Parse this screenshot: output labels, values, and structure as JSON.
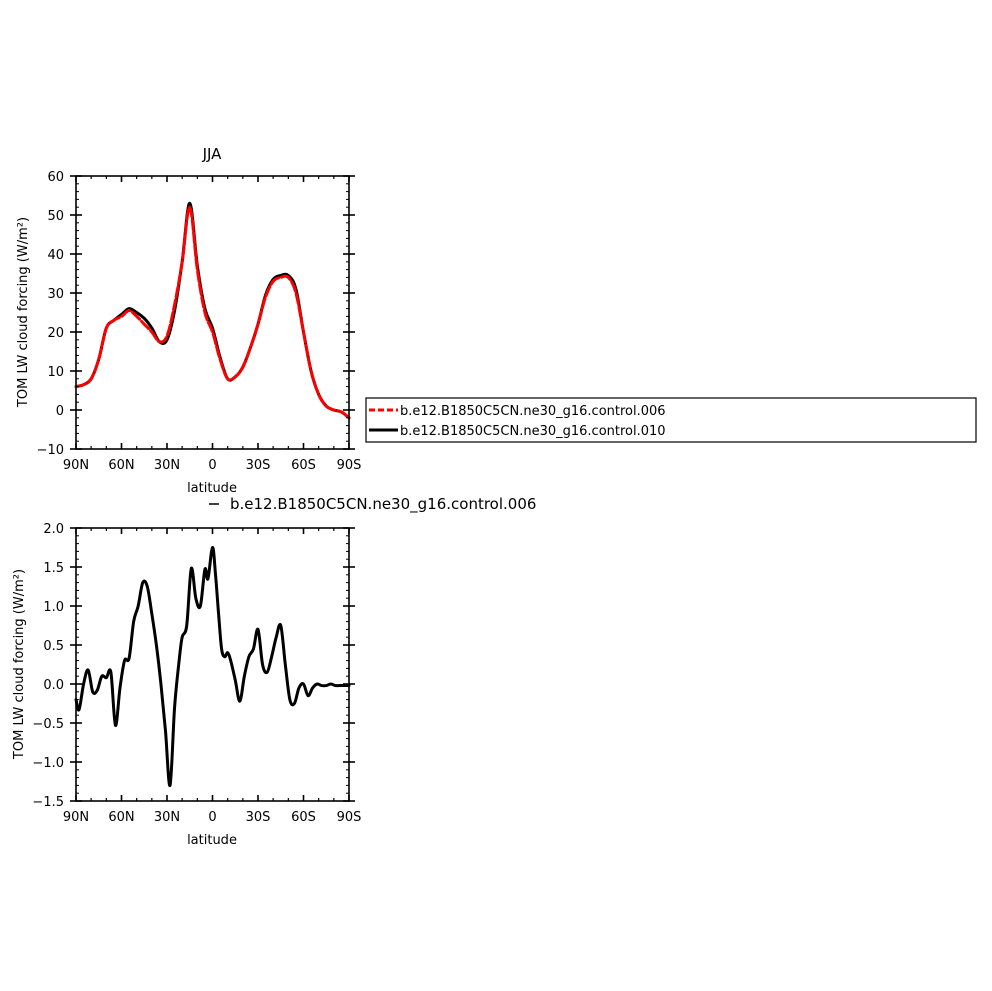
{
  "chart_data": [
    {
      "type": "line",
      "title": "JJA",
      "xlabel": "latitude",
      "ylabel": "TOM LW cloud forcing (W/m²)",
      "xlim": [
        -90,
        90
      ],
      "ylim": [
        -10,
        60
      ],
      "x_tick_values": [
        -90,
        -60,
        -30,
        0,
        30,
        60,
        90
      ],
      "x_tick_labels": [
        "90N",
        "60N",
        "30N",
        "0",
        "30S",
        "60S",
        "90S"
      ],
      "y_tick_values": [
        -10,
        0,
        10,
        20,
        30,
        40,
        50,
        60
      ],
      "y_tick_labels": [
        "−10",
        "0",
        "10",
        "20",
        "30",
        "40",
        "50",
        "60"
      ],
      "grid": false,
      "legend": "right",
      "series": [
        {
          "name": "b.e12.B1850C5CN.ne30_g16.control.006",
          "color": "#ff0000",
          "style": "dashed",
          "x": [
            -90,
            -85,
            -80,
            -75,
            -70,
            -65,
            -60,
            -55,
            -50,
            -45,
            -40,
            -35,
            -30,
            -25,
            -20,
            -15,
            -10,
            -5,
            0,
            5,
            10,
            15,
            20,
            25,
            30,
            35,
            40,
            45,
            50,
            55,
            60,
            65,
            70,
            75,
            80,
            85,
            90
          ],
          "y": [
            6,
            6.5,
            8,
            13,
            21,
            23,
            24,
            25.5,
            24,
            22,
            20,
            17.5,
            19,
            27,
            38,
            52,
            36,
            25,
            20,
            13,
            8,
            8.5,
            11,
            16,
            22,
            29,
            33,
            34,
            34,
            30,
            20,
            10,
            4,
            1,
            0,
            -0.5,
            -2
          ]
        },
        {
          "name": "b.e12.B1850C5CN.ne30_g16.control.010",
          "color": "#000000",
          "style": "solid",
          "x": [
            -90,
            -85,
            -80,
            -75,
            -70,
            -65,
            -60,
            -55,
            -50,
            -45,
            -40,
            -35,
            -30,
            -25,
            -20,
            -15,
            -10,
            -5,
            0,
            5,
            10,
            15,
            20,
            25,
            30,
            35,
            40,
            45,
            50,
            55,
            60,
            65,
            70,
            75,
            80,
            85,
            90
          ],
          "y": [
            6,
            6.5,
            8,
            13,
            21,
            23,
            24.5,
            26,
            25,
            23.5,
            21,
            17.5,
            18,
            25.5,
            38,
            53,
            37,
            26,
            21,
            13.5,
            8,
            8.5,
            11,
            16,
            22,
            29.5,
            33.5,
            34.5,
            34.5,
            31,
            20,
            10,
            4,
            1,
            0,
            -0.5,
            -2
          ]
        }
      ]
    },
    {
      "type": "line",
      "title": "b.e12.B1850C5CN.ne30_g16.control.006",
      "xlabel": "latitude",
      "ylabel": "TOM LW cloud forcing (W/m²)",
      "xlim": [
        -90,
        90
      ],
      "ylim": [
        -1.5,
        2.0
      ],
      "x_tick_values": [
        -90,
        -60,
        -30,
        0,
        30,
        60,
        90
      ],
      "x_tick_labels": [
        "90N",
        "60N",
        "30N",
        "0",
        "30S",
        "60S",
        "90S"
      ],
      "y_tick_values": [
        -1.5,
        -1.0,
        -0.5,
        0.0,
        0.5,
        1.0,
        1.5,
        2.0
      ],
      "y_tick_labels": [
        "−1.5",
        "−1.0",
        "−0.5",
        "0.0",
        "0.5",
        "1.0",
        "1.5",
        "2.0"
      ],
      "grid": false,
      "series": [
        {
          "color": "#000000",
          "style": "solid",
          "x": [
            -90,
            -88,
            -85,
            -82,
            -79,
            -76,
            -73,
            -70,
            -67,
            -64,
            -61,
            -58,
            -55,
            -52,
            -49,
            -46,
            -43,
            -40,
            -37,
            -34,
            -31,
            -28,
            -25,
            -22,
            -20,
            -17,
            -14,
            -11,
            -8,
            -5,
            -3,
            0,
            2,
            4,
            6,
            8,
            10,
            12,
            15,
            18,
            21,
            24,
            27,
            30,
            33,
            36,
            39,
            42,
            45,
            48,
            51,
            54,
            57,
            60,
            63,
            66,
            69,
            72,
            75,
            78,
            81,
            84,
            87,
            90
          ],
          "y": [
            -0.2,
            -0.33,
            0.0,
            0.18,
            -0.1,
            -0.08,
            0.1,
            0.08,
            0.15,
            -0.53,
            -0.05,
            0.3,
            0.33,
            0.8,
            1.0,
            1.3,
            1.25,
            0.9,
            0.5,
            0.0,
            -0.6,
            -1.3,
            -0.3,
            0.3,
            0.6,
            0.75,
            1.48,
            1.1,
            1.0,
            1.47,
            1.35,
            1.75,
            1.4,
            0.9,
            0.45,
            0.35,
            0.4,
            0.3,
            0.05,
            -0.22,
            0.1,
            0.35,
            0.45,
            0.7,
            0.25,
            0.15,
            0.35,
            0.6,
            0.75,
            0.25,
            -0.2,
            -0.25,
            -0.05,
            0.0,
            -0.15,
            -0.05,
            0.0,
            -0.02,
            -0.02,
            0.0,
            -0.02,
            -0.02,
            -0.02,
            -0.02
          ]
        }
      ]
    }
  ]
}
